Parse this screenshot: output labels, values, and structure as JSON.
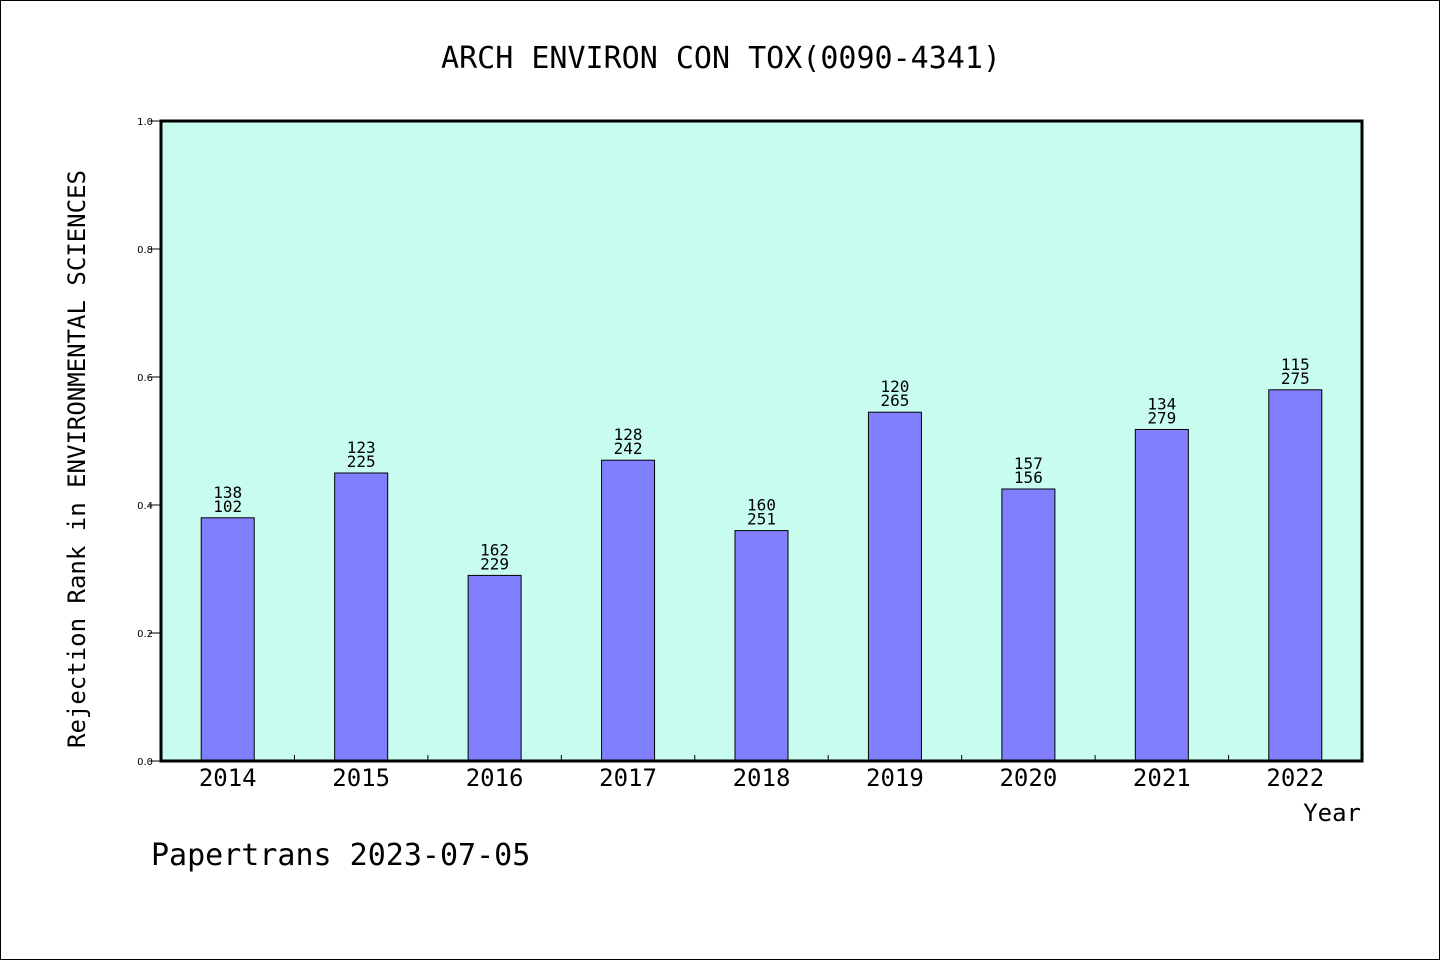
{
  "chart_data": {
    "type": "bar",
    "title": "ARCH ENVIRON CON TOX(0090-4341)",
    "xlabel": "Year",
    "ylabel": "Rejection Rank in ENVIRONMENTAL SCIENCES",
    "ylim": [
      0,
      1.0
    ],
    "yticks": [
      "0.0",
      "0.2",
      "0.4",
      "0.6",
      "0.8",
      "1.0"
    ],
    "categories": [
      "2014",
      "2015",
      "2016",
      "2017",
      "2018",
      "2019",
      "2020",
      "2021",
      "2022"
    ],
    "values": [
      0.38,
      0.45,
      0.29,
      0.47,
      0.36,
      0.545,
      0.425,
      0.518,
      0.58
    ],
    "label_top": [
      "138",
      "123",
      "162",
      "128",
      "160",
      "120",
      "157",
      "134",
      "115"
    ],
    "label_bottom": [
      "102",
      "225",
      "229",
      "242",
      "251",
      "265",
      "156",
      "279",
      "275"
    ],
    "grid": false,
    "colors": {
      "plot_background": "#c8fcee",
      "bar_fill": "#8080ff",
      "bar_stroke": "#000000"
    }
  },
  "footer": {
    "text": "Papertrans 2023-07-05"
  }
}
